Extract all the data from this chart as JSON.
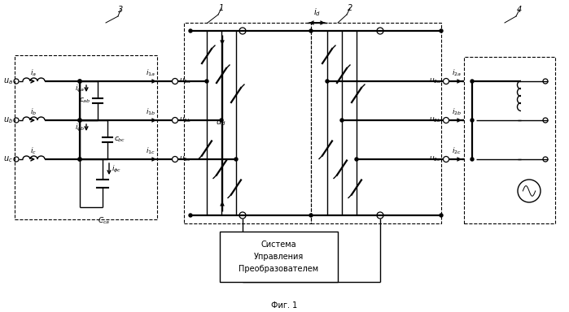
{
  "bg_color": "#ffffff",
  "fig_width": 6.99,
  "fig_height": 3.84,
  "dpi": 100,
  "caption": "Фиг. 1",
  "control_box_text": "Система\nУправления\nПреобразователем"
}
